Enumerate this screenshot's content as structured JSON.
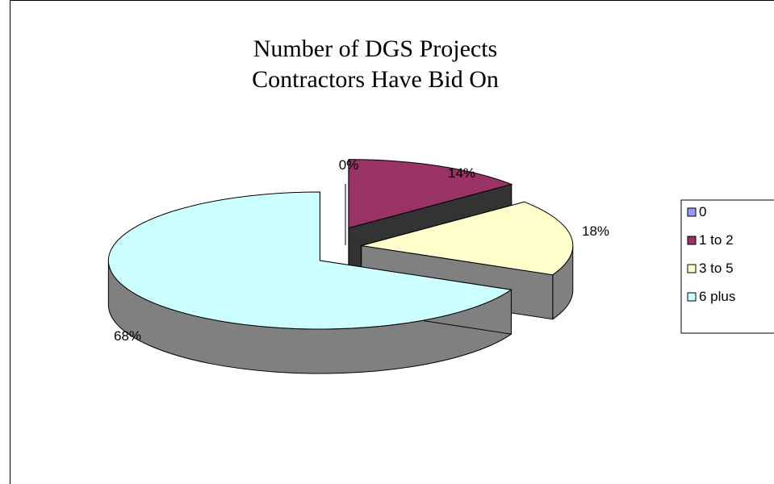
{
  "chart_data": {
    "type": "pie",
    "style": "3d-exploded",
    "title": [
      "Number of DGS Projects",
      "Contractors Have Bid On"
    ],
    "categories": [
      "0",
      "1 to 2",
      "3 to 5",
      "6 plus"
    ],
    "values": [
      0,
      14,
      18,
      68
    ],
    "labels": [
      "0%",
      "14%",
      "18%",
      "68%"
    ],
    "colors": [
      "#9999FF",
      "#993366",
      "#FFFFCC",
      "#CCFFFF"
    ],
    "side_color": "#808080",
    "legend_position": "right"
  }
}
